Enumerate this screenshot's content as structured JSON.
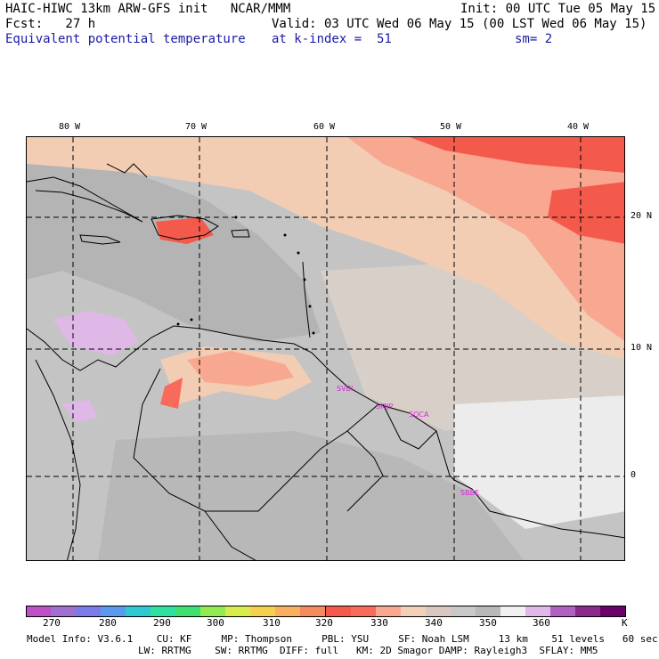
{
  "header": {
    "line1_left": "HAIC-HIWC 13km ARW-GFS init   NCAR/MMM",
    "line1_right": "Init: 00 UTC Tue 05 May 15",
    "line2_left": "Fcst:   27 h",
    "line2_right": "Valid: 03 UTC Wed 06 May 15 (00 LST Wed 06 May 15)",
    "line3_field": "Equivalent potential temperature",
    "line3_level": "at k-index =  51",
    "line3_smooth": "sm= 2"
  },
  "map": {
    "lon_labels": [
      "80 W",
      "70 W",
      "60 W",
      "50 W",
      "40 W"
    ],
    "lat_labels": [
      "20 N",
      "10 N",
      "0"
    ],
    "stations": [
      "SVBI",
      "SMJP",
      "SOCA",
      "SBBE"
    ]
  },
  "colorbar": {
    "unit": "K",
    "labels": [
      "270",
      "280",
      "290",
      "300",
      "310",
      "320",
      "330",
      "340",
      "350",
      "360"
    ],
    "colors": [
      "#c050c8",
      "#a070d0",
      "#7a7ae8",
      "#5a9aee",
      "#30c8d0",
      "#30e0a0",
      "#40e070",
      "#90ea50",
      "#d8ec50",
      "#f4d050",
      "#f8b060",
      "#f48a60",
      "#f45a4c",
      "#f86a5a",
      "#f8a890",
      "#f2d0b8",
      "#d8c8c0",
      "#c8c8c8",
      "#b8b8b8",
      "#f0f0f0",
      "#e0b8e8",
      "#b060c0",
      "#8a2a8a",
      "#6a006a"
    ]
  },
  "footer": {
    "line1": "Model Info: V3.6.1    CU: KF     MP: Thompson     PBL: YSU     SF: Noah LSM     13 km    51 levels   60 sec",
    "line2": "LW: RRTMG    SW: RRTMG  DIFF: full   KM: 2D Smagor DAMP: Rayleigh3  SFLAY: MM5"
  }
}
